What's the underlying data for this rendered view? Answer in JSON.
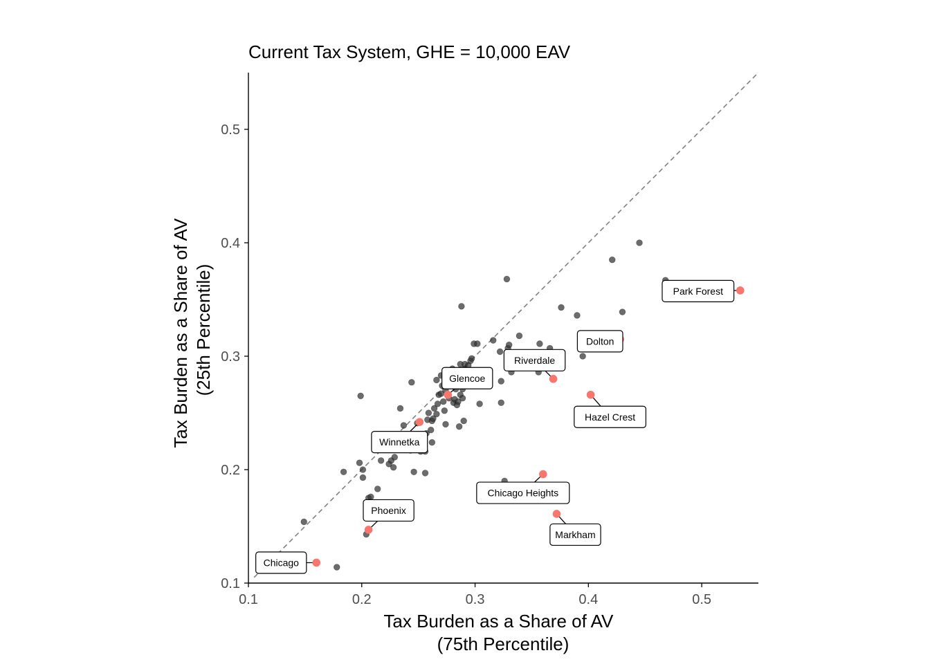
{
  "chart_data": {
    "type": "scatter",
    "title": "Current Tax System, GHE = 10,000 EAV",
    "xlabel": [
      "Tax Burden as a Share of AV",
      "(75th Percentile)"
    ],
    "ylabel": [
      "Tax Burden as a Share of AV",
      "(25th Percentile)"
    ],
    "xlim": [
      0.1,
      0.55
    ],
    "ylim": [
      0.1,
      0.55
    ],
    "xticks": [
      0.1,
      0.2,
      0.3,
      0.4,
      0.5
    ],
    "yticks": [
      0.1,
      0.2,
      0.3,
      0.4,
      0.5
    ],
    "xtick_labels": [
      "0.1",
      "0.2",
      "0.3",
      "0.4",
      "0.5"
    ],
    "ytick_labels": [
      "0.1",
      "0.2",
      "0.3",
      "0.4",
      "0.5"
    ],
    "reference_line": {
      "style": "dashed",
      "slope": 1,
      "intercept": 0
    },
    "grid": false,
    "colors": {
      "points": "#333333",
      "highlight": "#f8766d",
      "reference": "#808080",
      "axis": "#000000"
    },
    "series": [
      {
        "points": [
          [
            0.149,
            0.154
          ],
          [
            0.178,
            0.114
          ],
          [
            0.184,
            0.198
          ],
          [
            0.198,
            0.206
          ],
          [
            0.199,
            0.265
          ],
          [
            0.201,
            0.193
          ],
          [
            0.201,
            0.2
          ],
          [
            0.204,
            0.143
          ],
          [
            0.206,
            0.175
          ],
          [
            0.208,
            0.176
          ],
          [
            0.214,
            0.183
          ],
          [
            0.217,
            0.208
          ],
          [
            0.224,
            0.205
          ],
          [
            0.226,
            0.208
          ],
          [
            0.228,
            0.202
          ],
          [
            0.229,
            0.211
          ],
          [
            0.234,
            0.254
          ],
          [
            0.237,
            0.239
          ],
          [
            0.24,
            0.218
          ],
          [
            0.243,
            0.217
          ],
          [
            0.244,
            0.277
          ],
          [
            0.246,
            0.198
          ],
          [
            0.248,
            0.224
          ],
          [
            0.249,
            0.241
          ],
          [
            0.252,
            0.216
          ],
          [
            0.254,
            0.228
          ],
          [
            0.256,
            0.216
          ],
          [
            0.256,
            0.197
          ],
          [
            0.257,
            0.232
          ],
          [
            0.258,
            0.244
          ],
          [
            0.259,
            0.25
          ],
          [
            0.261,
            0.235
          ],
          [
            0.262,
            0.224
          ],
          [
            0.262,
            0.243
          ],
          [
            0.263,
            0.245
          ],
          [
            0.264,
            0.254
          ],
          [
            0.266,
            0.249
          ],
          [
            0.266,
            0.279
          ],
          [
            0.267,
            0.258
          ],
          [
            0.268,
            0.266
          ],
          [
            0.27,
            0.267
          ],
          [
            0.27,
            0.283
          ],
          [
            0.271,
            0.274
          ],
          [
            0.272,
            0.26
          ],
          [
            0.273,
            0.252
          ],
          [
            0.274,
            0.24
          ],
          [
            0.274,
            0.27
          ],
          [
            0.276,
            0.266
          ],
          [
            0.277,
            0.263
          ],
          [
            0.278,
            0.285
          ],
          [
            0.279,
            0.275
          ],
          [
            0.28,
            0.289
          ],
          [
            0.281,
            0.259
          ],
          [
            0.282,
            0.262
          ],
          [
            0.283,
            0.271
          ],
          [
            0.284,
            0.257
          ],
          [
            0.285,
            0.26
          ],
          [
            0.286,
            0.238
          ],
          [
            0.286,
            0.279
          ],
          [
            0.287,
            0.266
          ],
          [
            0.287,
            0.293
          ],
          [
            0.288,
            0.344
          ],
          [
            0.289,
            0.271
          ],
          [
            0.289,
            0.263
          ],
          [
            0.29,
            0.243
          ],
          [
            0.291,
            0.289
          ],
          [
            0.291,
            0.293
          ],
          [
            0.294,
            0.292
          ],
          [
            0.296,
            0.296
          ],
          [
            0.297,
            0.298
          ],
          [
            0.299,
            0.311
          ],
          [
            0.302,
            0.311
          ],
          [
            0.304,
            0.258
          ],
          [
            0.305,
            0.281
          ],
          [
            0.316,
            0.314
          ],
          [
            0.322,
            0.304
          ],
          [
            0.323,
            0.278
          ],
          [
            0.323,
            0.259
          ],
          [
            0.326,
            0.19
          ],
          [
            0.328,
            0.368
          ],
          [
            0.329,
            0.307
          ],
          [
            0.33,
            0.31
          ],
          [
            0.332,
            0.286
          ],
          [
            0.339,
            0.318
          ],
          [
            0.346,
            0.29
          ],
          [
            0.356,
            0.286
          ],
          [
            0.357,
            0.311
          ],
          [
            0.366,
            0.307
          ],
          [
            0.376,
            0.343
          ],
          [
            0.39,
            0.336
          ],
          [
            0.395,
            0.3
          ],
          [
            0.418,
            0.316
          ],
          [
            0.421,
            0.385
          ],
          [
            0.43,
            0.339
          ],
          [
            0.445,
            0.4
          ],
          [
            0.468,
            0.367
          ]
        ]
      },
      {
        "highlighted": true,
        "points": [
          {
            "label": "Chicago",
            "x": 0.16,
            "y": 0.118
          },
          {
            "label": "Phoenix",
            "x": 0.206,
            "y": 0.147
          },
          {
            "label": "Winnetka",
            "x": 0.251,
            "y": 0.242
          },
          {
            "label": "Glencoe",
            "x": 0.276,
            "y": 0.266
          },
          {
            "label": "Riverdale",
            "x": 0.369,
            "y": 0.28
          },
          {
            "label": "Dolton",
            "x": 0.428,
            "y": 0.315
          },
          {
            "label": "Hazel Crest",
            "x": 0.402,
            "y": 0.266
          },
          {
            "label": "Chicago Heights",
            "x": 0.36,
            "y": 0.196
          },
          {
            "label": "Markham",
            "x": 0.372,
            "y": 0.161
          },
          {
            "label": "Park Forest",
            "x": 0.534,
            "y": 0.358
          }
        ]
      }
    ]
  }
}
